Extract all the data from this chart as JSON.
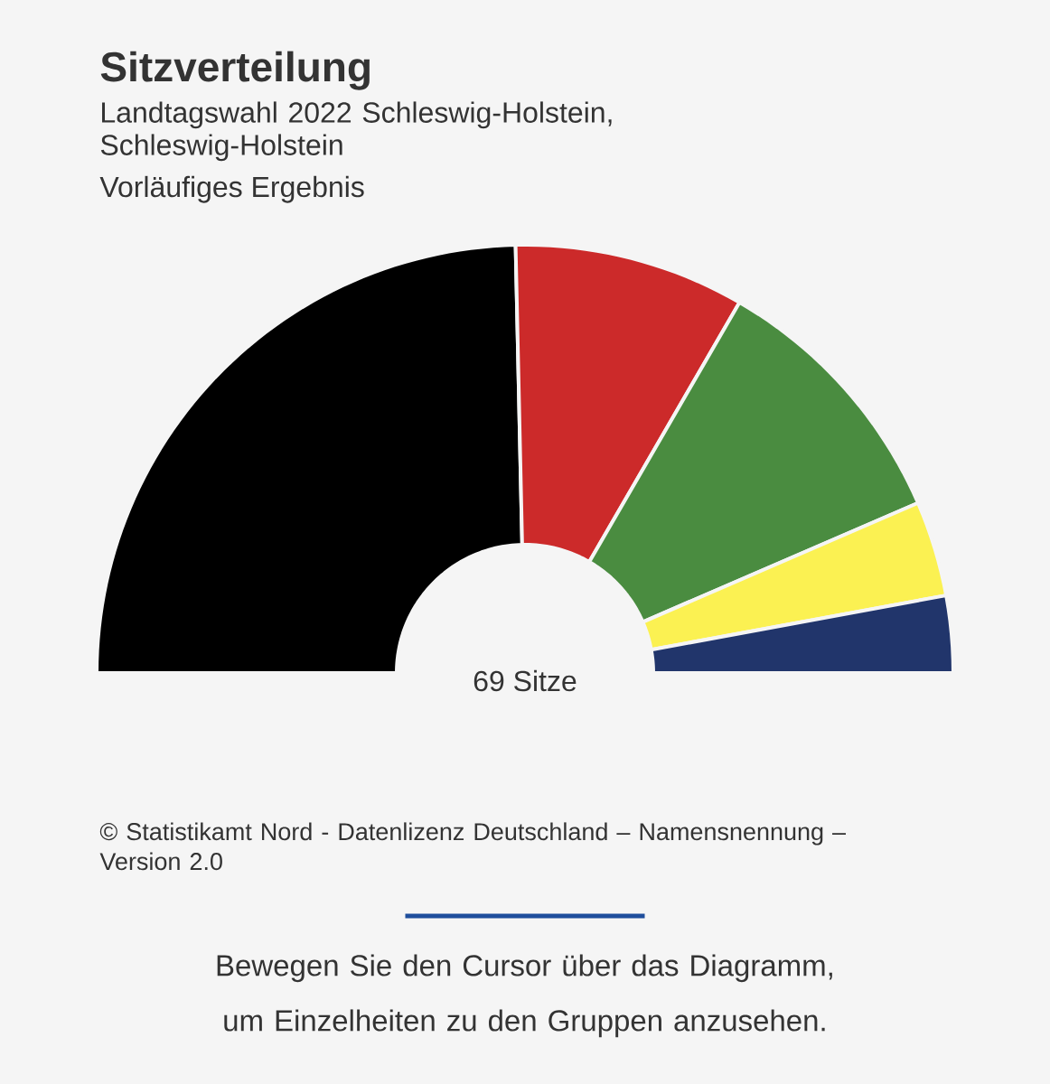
{
  "chart_data": {
    "type": "donut",
    "title": "Sitzverteilung",
    "subtitle": "Landtagswahl 2022 Schleswig-Holstein, Schleswig-Holstein",
    "categories": [
      null,
      null,
      null,
      null,
      null
    ],
    "values": [
      49.3,
      17.4,
      20.3,
      7.2,
      5.8
    ],
    "colors": [
      "#000000",
      "#cc2a2a",
      "#4a8c40",
      "#fbf152",
      "#21356b"
    ],
    "annotations": [
      "69 Sitze",
      "Vorläufiges Ergebnis",
      "© Statistikamt Nord - Datenlizenz Deutschland – Namensnennung – Version 2.0",
      "Bewegen Sie den Cursor über das Diagramm, um Einzelheiten zu den Gruppen anzusehen."
    ]
  }
}
